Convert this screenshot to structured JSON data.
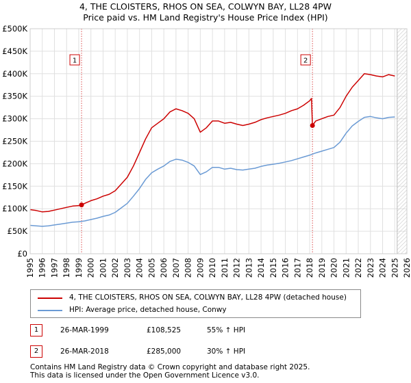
{
  "title_line1": "4, THE CLOISTERS, RHOS ON SEA, COLWYN BAY, LL28 4PW",
  "title_line2": "Price paid vs. HM Land Registry's House Price Index (HPI)",
  "colors": {
    "property": "#cc0000",
    "hpi": "#6a9ad4",
    "grid": "#e0e0e0",
    "marker_line": "#cc0000"
  },
  "chart_data": {
    "type": "line",
    "title": "4, THE CLOISTERS, RHOS ON SEA, COLWYN BAY, LL28 4PW — Price paid vs. HM Land Registry's House Price Index (HPI)",
    "xlabel": "",
    "ylabel": "",
    "xlim": [
      1995,
      2026
    ],
    "ylim": [
      0,
      500000
    ],
    "x_ticks": [
      "1995",
      "1996",
      "1997",
      "1998",
      "1999",
      "2000",
      "2001",
      "2002",
      "2003",
      "2004",
      "2005",
      "2006",
      "2007",
      "2008",
      "2009",
      "2010",
      "2011",
      "2012",
      "2013",
      "2014",
      "2015",
      "2016",
      "2017",
      "2018",
      "2019",
      "2020",
      "2021",
      "2022",
      "2023",
      "2024",
      "2025",
      "2026"
    ],
    "y_ticks": [
      {
        "value": 0,
        "label": "£0"
      },
      {
        "value": 50000,
        "label": "£50K"
      },
      {
        "value": 100000,
        "label": "£100K"
      },
      {
        "value": 150000,
        "label": "£150K"
      },
      {
        "value": 200000,
        "label": "£200K"
      },
      {
        "value": 250000,
        "label": "£250K"
      },
      {
        "value": 300000,
        "label": "£300K"
      },
      {
        "value": 350000,
        "label": "£350K"
      },
      {
        "value": 400000,
        "label": "£400K"
      },
      {
        "value": 450000,
        "label": "£450K"
      },
      {
        "value": 500000,
        "label": "£500K"
      }
    ],
    "hatch_from": 2025.2,
    "series": [
      {
        "name": "4, THE CLOISTERS, RHOS ON SEA, COLWYN BAY, LL28 4PW (detached house)",
        "color": "#cc0000",
        "points": [
          [
            1995.0,
            98000
          ],
          [
            1995.5,
            96000
          ],
          [
            1996.0,
            93000
          ],
          [
            1996.5,
            94000
          ],
          [
            1997.0,
            97000
          ],
          [
            1997.5,
            100000
          ],
          [
            1998.0,
            103000
          ],
          [
            1998.5,
            106000
          ],
          [
            1999.0,
            107000
          ],
          [
            1999.23,
            108525
          ],
          [
            1999.5,
            112000
          ],
          [
            2000.0,
            118000
          ],
          [
            2000.5,
            122000
          ],
          [
            2001.0,
            128000
          ],
          [
            2001.5,
            132000
          ],
          [
            2002.0,
            140000
          ],
          [
            2002.5,
            155000
          ],
          [
            2003.0,
            170000
          ],
          [
            2003.5,
            195000
          ],
          [
            2004.0,
            225000
          ],
          [
            2004.5,
            255000
          ],
          [
            2005.0,
            280000
          ],
          [
            2005.5,
            290000
          ],
          [
            2006.0,
            300000
          ],
          [
            2006.5,
            315000
          ],
          [
            2007.0,
            322000
          ],
          [
            2007.5,
            318000
          ],
          [
            2008.0,
            312000
          ],
          [
            2008.5,
            300000
          ],
          [
            2009.0,
            270000
          ],
          [
            2009.5,
            280000
          ],
          [
            2010.0,
            295000
          ],
          [
            2010.5,
            295000
          ],
          [
            2011.0,
            290000
          ],
          [
            2011.5,
            292000
          ],
          [
            2012.0,
            288000
          ],
          [
            2012.5,
            285000
          ],
          [
            2013.0,
            288000
          ],
          [
            2013.5,
            292000
          ],
          [
            2014.0,
            298000
          ],
          [
            2014.5,
            302000
          ],
          [
            2015.0,
            305000
          ],
          [
            2015.5,
            308000
          ],
          [
            2016.0,
            312000
          ],
          [
            2016.5,
            318000
          ],
          [
            2017.0,
            322000
          ],
          [
            2017.5,
            330000
          ],
          [
            2018.0,
            340000
          ],
          [
            2018.15,
            345000
          ],
          [
            2018.23,
            285000
          ],
          [
            2018.5,
            295000
          ],
          [
            2019.0,
            300000
          ],
          [
            2019.5,
            305000
          ],
          [
            2020.0,
            308000
          ],
          [
            2020.5,
            325000
          ],
          [
            2021.0,
            350000
          ],
          [
            2021.5,
            370000
          ],
          [
            2022.0,
            385000
          ],
          [
            2022.5,
            400000
          ],
          [
            2023.0,
            398000
          ],
          [
            2023.5,
            395000
          ],
          [
            2024.0,
            393000
          ],
          [
            2024.5,
            398000
          ],
          [
            2025.0,
            395000
          ]
        ]
      },
      {
        "name": "HPI: Average price, detached house, Conwy",
        "color": "#6a9ad4",
        "points": [
          [
            1995.0,
            63000
          ],
          [
            1995.5,
            62000
          ],
          [
            1996.0,
            61000
          ],
          [
            1996.5,
            62000
          ],
          [
            1997.0,
            64000
          ],
          [
            1997.5,
            66000
          ],
          [
            1998.0,
            68000
          ],
          [
            1998.5,
            70000
          ],
          [
            1999.0,
            71000
          ],
          [
            1999.5,
            73000
          ],
          [
            2000.0,
            76000
          ],
          [
            2000.5,
            79000
          ],
          [
            2001.0,
            83000
          ],
          [
            2001.5,
            86000
          ],
          [
            2002.0,
            92000
          ],
          [
            2002.5,
            102000
          ],
          [
            2003.0,
            112000
          ],
          [
            2003.5,
            128000
          ],
          [
            2004.0,
            145000
          ],
          [
            2004.5,
            165000
          ],
          [
            2005.0,
            180000
          ],
          [
            2005.5,
            188000
          ],
          [
            2006.0,
            195000
          ],
          [
            2006.5,
            205000
          ],
          [
            2007.0,
            210000
          ],
          [
            2007.5,
            208000
          ],
          [
            2008.0,
            203000
          ],
          [
            2008.5,
            195000
          ],
          [
            2009.0,
            176000
          ],
          [
            2009.5,
            182000
          ],
          [
            2010.0,
            192000
          ],
          [
            2010.5,
            192000
          ],
          [
            2011.0,
            188000
          ],
          [
            2011.5,
            190000
          ],
          [
            2012.0,
            187000
          ],
          [
            2012.5,
            186000
          ],
          [
            2013.0,
            188000
          ],
          [
            2013.5,
            190000
          ],
          [
            2014.0,
            194000
          ],
          [
            2014.5,
            197000
          ],
          [
            2015.0,
            199000
          ],
          [
            2015.5,
            201000
          ],
          [
            2016.0,
            204000
          ],
          [
            2016.5,
            207000
          ],
          [
            2017.0,
            211000
          ],
          [
            2017.5,
            215000
          ],
          [
            2018.0,
            219000
          ],
          [
            2018.5,
            224000
          ],
          [
            2019.0,
            228000
          ],
          [
            2019.5,
            232000
          ],
          [
            2020.0,
            236000
          ],
          [
            2020.5,
            248000
          ],
          [
            2021.0,
            268000
          ],
          [
            2021.5,
            284000
          ],
          [
            2022.0,
            294000
          ],
          [
            2022.5,
            303000
          ],
          [
            2023.0,
            305000
          ],
          [
            2023.5,
            302000
          ],
          [
            2024.0,
            300000
          ],
          [
            2024.5,
            303000
          ],
          [
            2025.0,
            304000
          ]
        ]
      }
    ],
    "annotations": [
      {
        "label": "1",
        "x": 1999.23,
        "y": 108525
      },
      {
        "label": "2",
        "x": 2018.23,
        "y": 285000
      }
    ]
  },
  "legend": {
    "property_label": "4, THE CLOISTERS, RHOS ON SEA, COLWYN BAY, LL28 4PW (detached house)",
    "hpi_label": "HPI: Average price, detached house, Conwy"
  },
  "sales": [
    {
      "num": "1",
      "date": "26-MAR-1999",
      "price": "£108,525",
      "hpi": "55% ↑ HPI"
    },
    {
      "num": "2",
      "date": "26-MAR-2018",
      "price": "£285,000",
      "hpi": "30% ↑ HPI"
    }
  ],
  "footer": {
    "line1": "Contains HM Land Registry data © Crown copyright and database right 2025.",
    "line2": "This data is licensed under the Open Government Licence v3.0."
  }
}
